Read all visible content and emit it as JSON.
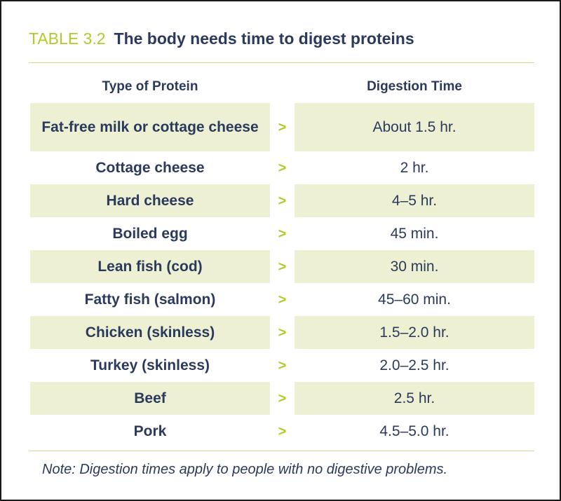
{
  "table": {
    "number": "TABLE 3.2",
    "title": "The body needs time to digest proteins",
    "col_type_header": "Type of Protein",
    "col_time_header": "Digestion Time",
    "arrow_glyph": ">",
    "accent_color": "#b5c82a",
    "text_color": "#2b3a5c",
    "shade_color": "#edf0d3",
    "rows": [
      {
        "type": "Fat-free milk or cottage cheese",
        "time": "About 1.5 hr."
      },
      {
        "type": "Cottage cheese",
        "time": "2 hr."
      },
      {
        "type": "Hard cheese",
        "time": "4–5 hr."
      },
      {
        "type": "Boiled egg",
        "time": "45 min."
      },
      {
        "type": "Lean fish (cod)",
        "time": "30 min."
      },
      {
        "type": "Fatty fish (salmon)",
        "time": "45–60 min."
      },
      {
        "type": "Chicken (skinless)",
        "time": "1.5–2.0 hr."
      },
      {
        "type": "Turkey (skinless)",
        "time": "2.0–2.5 hr."
      },
      {
        "type": "Beef",
        "time": "2.5 hr."
      },
      {
        "type": "Pork",
        "time": "4.5–5.0 hr."
      }
    ],
    "note": "Note: Digestion times apply to people with no digestive problems."
  }
}
